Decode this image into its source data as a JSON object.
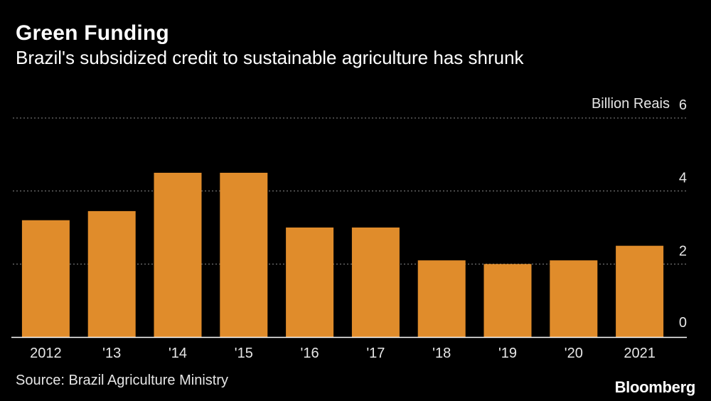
{
  "header": {
    "title": "Green Funding",
    "subtitle": "Brazil's subsidized credit to sustainable agriculture has shrunk"
  },
  "footer": {
    "source": "Source: Brazil Agriculture Ministry",
    "brand": "Bloomberg"
  },
  "colors": {
    "bar": "#E08C2B",
    "background": "#000000",
    "grid": "#8a8a8a"
  },
  "chart_data": {
    "type": "bar",
    "categories": [
      "2012",
      "'13",
      "'14",
      "'15",
      "'16",
      "'17",
      "'18",
      "'19",
      "'20",
      "2021"
    ],
    "series": [
      {
        "values": [
          3.2,
          3.45,
          4.5,
          4.5,
          3.0,
          3.0,
          2.1,
          2.0,
          2.1,
          2.5
        ]
      }
    ],
    "ylabel": "Billion Reais",
    "ylim": [
      0,
      6
    ],
    "yticks": [
      0,
      2,
      4,
      6
    ],
    "grid": true,
    "y_axis_position": "right"
  }
}
